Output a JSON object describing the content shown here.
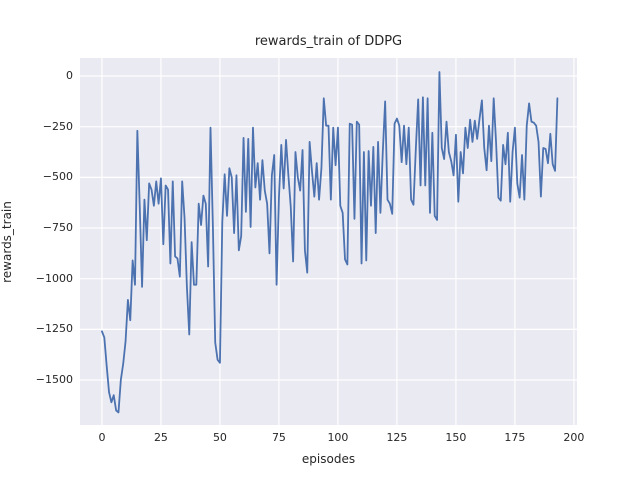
{
  "chart_data": {
    "type": "line",
    "title": "rewards_train of DDPG",
    "xlabel": "episodes",
    "ylabel": "rewards_train",
    "x_start": 0,
    "x_step": 1,
    "xlim": [
      -9.3,
      201.3
    ],
    "ylim": [
      -1722,
      89
    ],
    "xticks": [
      0,
      25,
      50,
      75,
      100,
      125,
      150,
      175,
      200
    ],
    "yticks": [
      0,
      -250,
      -500,
      -750,
      -1000,
      -1250,
      -1500
    ],
    "grid": true,
    "legend": false,
    "figure_bg": "#ffffff",
    "axes_bg": "#eaeaf2",
    "grid_color": "#ffffff",
    "text_color": "#262626",
    "series": [
      {
        "name": "rewards_train",
        "color": "#4c72b0",
        "values": [
          -1260,
          -1290,
          -1430,
          -1560,
          -1610,
          -1575,
          -1650,
          -1660,
          -1500,
          -1420,
          -1310,
          -1105,
          -1205,
          -910,
          -1030,
          -270,
          -640,
          -1040,
          -610,
          -810,
          -530,
          -560,
          -640,
          -520,
          -630,
          -505,
          -830,
          -540,
          -560,
          -925,
          -520,
          -890,
          -900,
          -990,
          -520,
          -700,
          -1040,
          -1275,
          -820,
          -1030,
          -1030,
          -630,
          -735,
          -590,
          -630,
          -940,
          -255,
          -735,
          -1315,
          -1400,
          -1415,
          -720,
          -485,
          -690,
          -455,
          -500,
          -775,
          -490,
          -860,
          -790,
          -305,
          -670,
          -310,
          -745,
          -255,
          -550,
          -430,
          -610,
          -415,
          -565,
          -630,
          -875,
          -490,
          -390,
          -1030,
          -600,
          -340,
          -555,
          -315,
          -490,
          -645,
          -915,
          -375,
          -500,
          -565,
          -365,
          -860,
          -970,
          -325,
          -470,
          -595,
          -430,
          -610,
          -455,
          -110,
          -245,
          -245,
          -610,
          -255,
          -440,
          -255,
          -640,
          -675,
          -905,
          -930,
          -235,
          -240,
          -705,
          -225,
          -240,
          -925,
          -375,
          -910,
          -370,
          -640,
          -350,
          -775,
          -325,
          -675,
          -375,
          -125,
          -610,
          -630,
          -680,
          -235,
          -210,
          -245,
          -425,
          -245,
          -435,
          -255,
          -610,
          -635,
          -360,
          -115,
          -540,
          -105,
          -540,
          -110,
          -675,
          -280,
          -690,
          -710,
          20,
          -355,
          -410,
          -225,
          -375,
          -420,
          -490,
          -290,
          -620,
          -375,
          -480,
          -255,
          -355,
          -215,
          -325,
          -220,
          -310,
          -210,
          -120,
          -355,
          -465,
          -245,
          -420,
          -110,
          -325,
          -600,
          -615,
          -340,
          -435,
          -280,
          -620,
          -375,
          -255,
          -530,
          -600,
          -390,
          -610,
          -245,
          -135,
          -225,
          -230,
          -245,
          -325,
          -595,
          -355,
          -360,
          -430,
          -285,
          -435,
          -468,
          -110
        ]
      }
    ]
  }
}
